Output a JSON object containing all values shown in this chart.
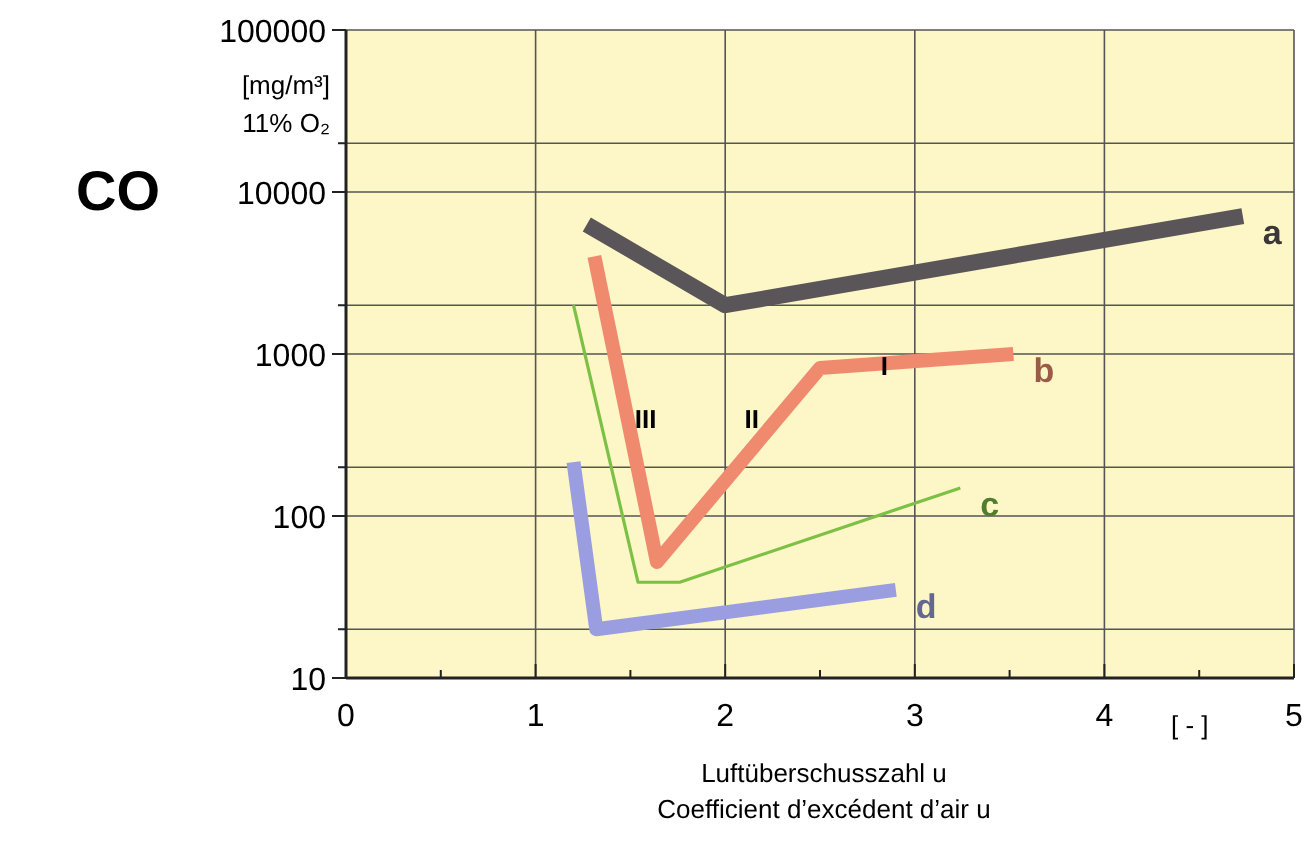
{
  "chart_data": {
    "type": "line",
    "ylabel": "CO",
    "xlabel": "Luftüberschusszahl u\nCoefficient d’excédent d’air u",
    "log": "y",
    "grid": true,
    "marker": "none",
    "line_style": "solid",
    "xlim": [
      0,
      5
    ],
    "xticks": [
      0,
      {
        "value": 0.5,
        "label": null
      },
      1,
      {
        "value": 1.5,
        "label": null
      },
      2,
      {
        "value": 2.5,
        "label": null
      },
      3,
      {
        "value": 3.5,
        "label": null
      },
      4,
      {
        "value": 4.5,
        "label": null
      },
      5
    ],
    "ylim": [
      10,
      100000
    ],
    "yticks": [
      10,
      {
        "value": 20,
        "label": null
      },
      100,
      {
        "value": 200,
        "label": null
      },
      1000,
      {
        "value": 2000,
        "label": null
      },
      10000,
      {
        "value": 20000,
        "label": null
      },
      100000
    ],
    "series": [
      {
        "name": "a",
        "color": "#5a5558",
        "x": [
          1.27,
          2.0,
          4.73
        ],
        "values": [
          6300,
          2000,
          7100
        ]
      },
      {
        "name": "b",
        "color": "#f08a6e",
        "x": [
          1.31,
          1.64,
          2.5,
          3.52
        ],
        "values": [
          4000,
          52,
          820,
          1000
        ]
      },
      {
        "name": "c",
        "color": "#7cc046",
        "x": [
          1.2,
          1.54,
          1.76,
          3.24
        ],
        "values": [
          2000,
          39,
          39,
          149
        ]
      },
      {
        "name": "d",
        "color": "#9a9ee0",
        "x": [
          1.2,
          1.32,
          2.9
        ],
        "values": [
          215,
          20,
          35
        ]
      }
    ],
    "annotations": [
      "[mg/m³]",
      "11% O₂",
      "[ - ]",
      "III",
      "II",
      {
        "text": "I",
        "x": 2.84,
        "y": 850
      }
    ]
  }
}
